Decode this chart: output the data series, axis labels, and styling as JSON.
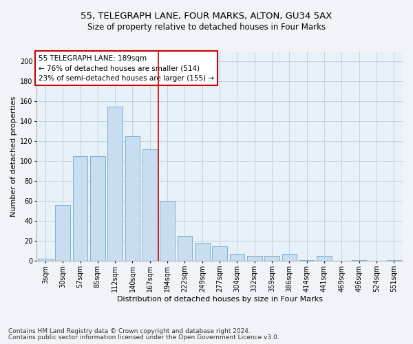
{
  "title1": "55, TELEGRAPH LANE, FOUR MARKS, ALTON, GU34 5AX",
  "title2": "Size of property relative to detached houses in Four Marks",
  "xlabel": "Distribution of detached houses by size in Four Marks",
  "ylabel": "Number of detached properties",
  "categories": [
    "3sqm",
    "30sqm",
    "57sqm",
    "85sqm",
    "112sqm",
    "140sqm",
    "167sqm",
    "194sqm",
    "222sqm",
    "249sqm",
    "277sqm",
    "304sqm",
    "332sqm",
    "359sqm",
    "386sqm",
    "414sqm",
    "441sqm",
    "469sqm",
    "496sqm",
    "524sqm",
    "551sqm"
  ],
  "values": [
    2,
    56,
    105,
    105,
    155,
    125,
    112,
    60,
    25,
    18,
    15,
    7,
    5,
    5,
    7,
    1,
    5,
    0,
    1,
    0,
    1
  ],
  "bar_color": "#c9ddf0",
  "bar_edge_color": "#6aaad4",
  "vline_x_index": 7,
  "vline_color": "#cc0000",
  "annotation_text": "55 TELEGRAPH LANE: 189sqm\n← 76% of detached houses are smaller (514)\n23% of semi-detached houses are larger (155) →",
  "annotation_box_color": "#ffffff",
  "annotation_box_edge_color": "#cc0000",
  "ylim": [
    0,
    210
  ],
  "yticks": [
    0,
    20,
    40,
    60,
    80,
    100,
    120,
    140,
    160,
    180,
    200
  ],
  "grid_color": "#b8cfe0",
  "bg_color": "#e8f0f8",
  "fig_bg_color": "#f0f4f8",
  "footer1": "Contains HM Land Registry data © Crown copyright and database right 2024.",
  "footer2": "Contains public sector information licensed under the Open Government Licence v3.0.",
  "title1_fontsize": 9.5,
  "title2_fontsize": 8.5,
  "xlabel_fontsize": 8,
  "ylabel_fontsize": 8,
  "tick_fontsize": 7,
  "annotation_fontsize": 7.5,
  "footer_fontsize": 6.5
}
